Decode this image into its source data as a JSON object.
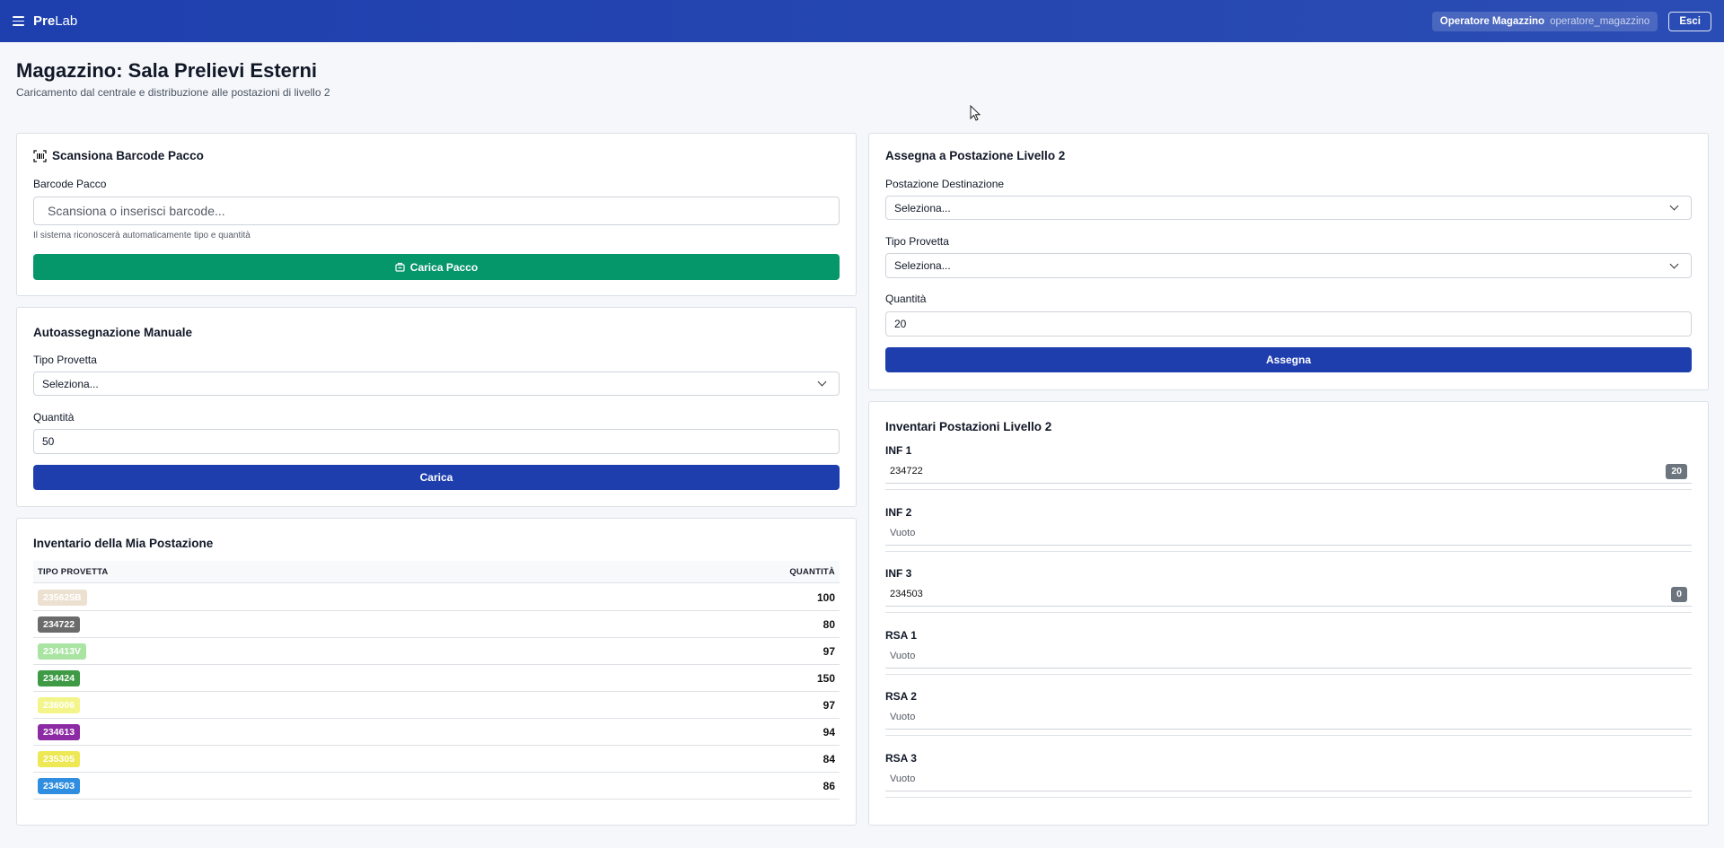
{
  "navbar": {
    "brand_bold": "Pre",
    "brand_rest": "Lab",
    "user_name": "Operatore Magazzino",
    "user_login": "operatore_magazzino",
    "logout_label": "Esci"
  },
  "header": {
    "title": "Magazzino: Sala Prelievi Esterni",
    "subtitle": "Caricamento dal centrale e distribuzione alle postazioni di livello 2"
  },
  "scan_card": {
    "title": "Scansiona Barcode Pacco",
    "field_label": "Barcode Pacco",
    "placeholder": "Scansiona o inserisci barcode...",
    "help": "Il sistema riconoscerà automaticamente tipo e quantità",
    "button_label": "Carica Pacco"
  },
  "manual_card": {
    "title": "Autoassegnazione Manuale",
    "type_label": "Tipo Provetta",
    "type_value": "Seleziona...",
    "qty_label": "Quantità",
    "qty_value": "50",
    "button_label": "Carica"
  },
  "my_inventory": {
    "title": "Inventario della Mia Postazione",
    "col_type": "TIPO PROVETTA",
    "col_qty": "QUANTITÀ",
    "rows": [
      {
        "code": "235625B",
        "qty": "100",
        "bg": "#ece1d0",
        "fg": "#ffffff"
      },
      {
        "code": "234722",
        "qty": "80",
        "bg": "#6b6b6b",
        "fg": "#ffffff"
      },
      {
        "code": "234413V",
        "qty": "97",
        "bg": "#a9e4a3",
        "fg": "#ffffff"
      },
      {
        "code": "234424",
        "qty": "150",
        "bg": "#3f9a46",
        "fg": "#ffffff"
      },
      {
        "code": "236006",
        "qty": "97",
        "bg": "#f3f58a",
        "fg": "#ffffff"
      },
      {
        "code": "234613",
        "qty": "94",
        "bg": "#8d2ba4",
        "fg": "#ffffff"
      },
      {
        "code": "235305",
        "qty": "84",
        "bg": "#eee854",
        "fg": "#ffffff"
      },
      {
        "code": "234503",
        "qty": "86",
        "bg": "#2f8ee0",
        "fg": "#ffffff"
      }
    ]
  },
  "assign_card": {
    "title": "Assegna a Postazione Livello 2",
    "dest_label": "Postazione Destinazione",
    "dest_value": "Seleziona...",
    "type_label": "Tipo Provetta",
    "type_value": "Seleziona...",
    "qty_label": "Quantità",
    "qty_value": "20",
    "button_label": "Assegna"
  },
  "stations_card": {
    "title": "Inventari Postazioni Livello 2",
    "stations": [
      {
        "name": "INF 1",
        "item": "234722",
        "count": "20"
      },
      {
        "name": "INF 2",
        "item": "Vuoto",
        "count": ""
      },
      {
        "name": "INF 3",
        "item": "234503",
        "count": "0"
      },
      {
        "name": "RSA 1",
        "item": "Vuoto",
        "count": ""
      },
      {
        "name": "RSA 2",
        "item": "Vuoto",
        "count": ""
      },
      {
        "name": "RSA 3",
        "item": "Vuoto",
        "count": ""
      }
    ]
  }
}
